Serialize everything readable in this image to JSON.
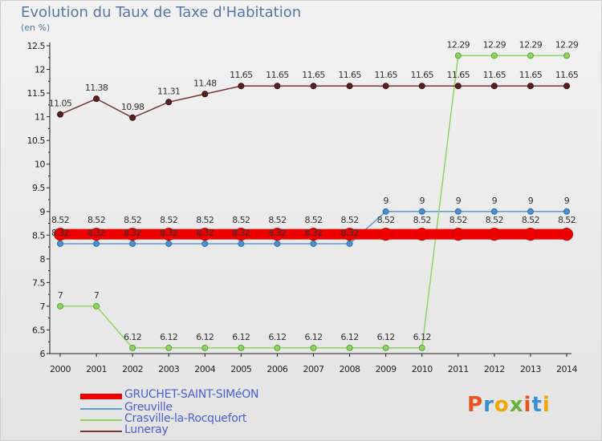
{
  "title": "Evolution du Taux de Taxe d'Habitation",
  "subtitle": "(en %)",
  "brand": {
    "text": "Proxiti",
    "colors": [
      "#e8531f",
      "#3a8fd6",
      "#f2a400",
      "#6ab23e",
      "#e8531f",
      "#3a8fd6",
      "#f2a400"
    ]
  },
  "chart_data": {
    "type": "line",
    "title": "Evolution du Taux de Taxe d'Habitation",
    "ylabel": "(en %)",
    "xlabel": "",
    "x": [
      "2000",
      "2001",
      "2002",
      "2003",
      "2004",
      "2005",
      "2006",
      "2007",
      "2008",
      "2009",
      "2010",
      "2011",
      "2012",
      "2013",
      "2014"
    ],
    "ylim": [
      6,
      12.5
    ],
    "yticks": [
      "6",
      "6.5",
      "7",
      "7.5",
      "8",
      "8.5",
      "9",
      "9.5",
      "10",
      "10.5",
      "11",
      "11.5",
      "12",
      "12.5"
    ],
    "grid": false,
    "legend_position": "bottom-left",
    "series": [
      {
        "name": "GRUCHET-SAINT-SIMéON",
        "color": "#ee0000",
        "values": [
          8.52,
          8.52,
          8.52,
          8.52,
          8.52,
          8.52,
          8.52,
          8.52,
          8.52,
          8.52,
          8.52,
          8.52,
          8.52,
          8.52,
          8.52
        ],
        "labels": [
          "8.52",
          "8.52",
          "8.52",
          "8.52",
          "8.52",
          "8.52",
          "8.52",
          "8.52",
          "8.52",
          "8.52",
          "8.52",
          "8.52",
          "8.52",
          "8.52",
          "8.52"
        ]
      },
      {
        "name": "Greuville",
        "color": "#5b9bd5",
        "values": [
          8.32,
          8.32,
          8.32,
          8.32,
          8.32,
          8.32,
          8.32,
          8.32,
          8.32,
          9,
          9,
          9,
          9,
          9,
          9
        ],
        "labels": [
          "8.32",
          "8.32",
          "8.32",
          "8.32",
          "8.32",
          "8.32",
          "8.32",
          "8.32",
          "8.32",
          "9",
          "9",
          "9",
          "9",
          "9",
          "9"
        ]
      },
      {
        "name": "Crasville-la-Rocquefort",
        "color": "#8fd460",
        "values": [
          7,
          7,
          6.12,
          6.12,
          6.12,
          6.12,
          6.12,
          6.12,
          6.12,
          6.12,
          6.12,
          12.29,
          12.29,
          12.29,
          12.29
        ],
        "labels": [
          "7",
          "7",
          "6.12",
          "6.12",
          "6.12",
          "6.12",
          "6.12",
          "6.12",
          "6.12",
          "6.12",
          "6.12",
          "12.29",
          "12.29",
          "12.29",
          "12.29"
        ]
      },
      {
        "name": "Luneray",
        "color": "#7b3535",
        "values": [
          11.05,
          11.38,
          10.98,
          11.31,
          11.48,
          11.65,
          11.65,
          11.65,
          11.65,
          11.65,
          11.65,
          11.65,
          11.65,
          11.65,
          11.65
        ],
        "labels": [
          "11.05",
          "11.38",
          "10.98",
          "11.31",
          "11.48",
          "11.65",
          "11.65",
          "11.65",
          "11.65",
          "11.65",
          "11.65",
          "11.65",
          "11.65",
          "11.65",
          "11.65"
        ]
      }
    ]
  }
}
